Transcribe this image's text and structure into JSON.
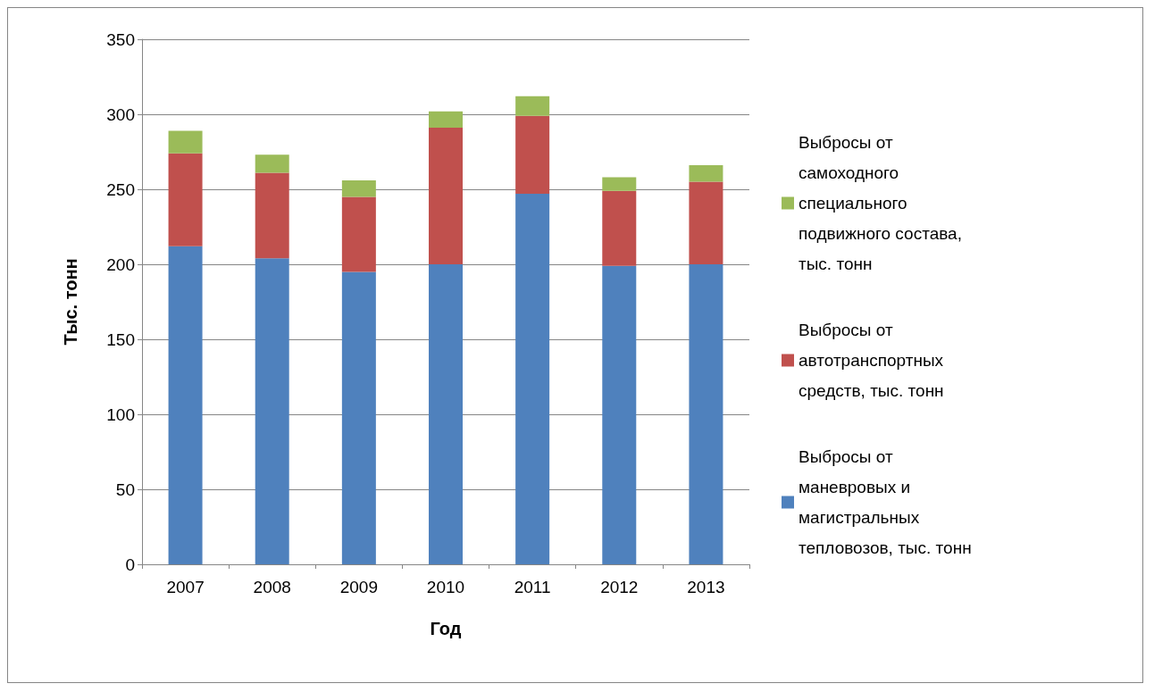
{
  "chart_data": {
    "type": "bar",
    "stacked": true,
    "xlabel": "Год",
    "ylabel": "Тыс. тонн",
    "categories": [
      "2007",
      "2008",
      "2009",
      "2010",
      "2011",
      "2012",
      "2013"
    ],
    "series": [
      {
        "name": "Выбросы от маневровых и магистральных тепловозов, тыс. тонн",
        "color": "#4f81bd",
        "values": [
          212,
          204,
          195,
          200,
          247,
          199,
          200
        ]
      },
      {
        "name": "Выбросы от автотранспортных средств, тыс. тонн",
        "color": "#c0504d",
        "values": [
          62,
          57,
          50,
          91,
          52,
          50,
          55
        ]
      },
      {
        "name": "Выбросы от самоходного специального подвижного состава, тыс. тонн",
        "color": "#9bbb59",
        "values": [
          15,
          12,
          11,
          11,
          13,
          9,
          11
        ]
      }
    ],
    "ylim": [
      0,
      350
    ],
    "yticks": [
      0,
      50,
      100,
      150,
      200,
      250,
      300,
      350
    ],
    "grid": "y",
    "legend": "right"
  }
}
